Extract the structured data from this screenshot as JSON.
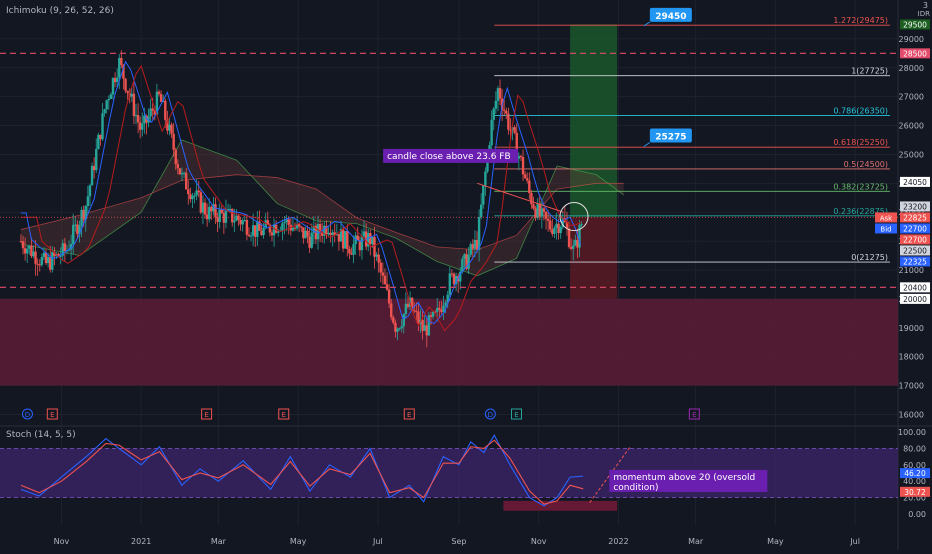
{
  "indicators": {
    "ichimoku_label": "Ichimoku (9, 26, 52, 26)",
    "stoch_label": "Stoch (14, 5, 5)"
  },
  "currency": "IDR",
  "top_axis_value": "3",
  "colors": {
    "background": "#131722",
    "grid": "#1e222d",
    "axis_text": "#b2b5be",
    "candle_up": "#26a69a",
    "candle_down": "#ef5350",
    "support_zone": "#5c1c36",
    "target_zone": "#1c5a2c",
    "stop_zone": "#5a1a24",
    "stoch_band": "#3b2466",
    "annotation_bg": "#6a1fb0",
    "callout_bg": "#2196f3",
    "dashed_line": "#e24b6a"
  },
  "annotations": {
    "candle_close": "candle close above 23.6 FB",
    "momentum": "momentum above 20 (oversold condition)"
  },
  "callouts": [
    "29450",
    "25275"
  ],
  "event_markers": [
    {
      "letter": "D",
      "color": "#2962ff",
      "date": "2020-10-06"
    },
    {
      "letter": "E",
      "color": "#ef5350",
      "date": "2020-10-25"
    },
    {
      "letter": "E",
      "color": "#ef5350",
      "date": "2021-02-20"
    },
    {
      "letter": "E",
      "color": "#ef5350",
      "date": "2021-04-20"
    },
    {
      "letter": "E",
      "color": "#ef5350",
      "date": "2021-07-25"
    },
    {
      "letter": "D",
      "color": "#2962ff",
      "date": "2021-09-25"
    },
    {
      "letter": "E",
      "color": "#26a69a",
      "date": "2021-10-15"
    },
    {
      "letter": "E",
      "color": "#9c27b0",
      "date": "2022-02-28"
    }
  ],
  "price_tags": [
    {
      "text": "29500",
      "price": 29500,
      "bg": "#1b5e20",
      "fg": "#ffffff"
    },
    {
      "text": "28500",
      "price": 28500,
      "bg": "#e24b6a",
      "fg": "#ffffff"
    },
    {
      "text": "24050",
      "price": 24050,
      "bg": "#ffffff",
      "fg": "#131722"
    },
    {
      "text": "23200",
      "price": 23200,
      "bg": "#d1d4dc",
      "fg": "#131722"
    },
    {
      "text": "22825",
      "price": 22825,
      "bg": "#ef5350",
      "fg": "#ffffff",
      "tag": "Ask"
    },
    {
      "text": "22700",
      "price": 22700,
      "bg": "#2962ff",
      "fg": "#ffffff",
      "tag": "Bid"
    },
    {
      "text": "22700",
      "price": 22700,
      "bg": "#ef5350",
      "fg": "#ffffff"
    },
    {
      "text": "22500",
      "price": 22500,
      "bg": "#d1d4dc",
      "fg": "#131722"
    },
    {
      "text": "22325",
      "price": 22325,
      "bg": "#2962ff",
      "fg": "#ffffff"
    },
    {
      "text": "20400",
      "price": 20400,
      "bg": "#ffffff",
      "fg": "#131722"
    },
    {
      "text": "20000",
      "price": 20000,
      "bg": "#ffffff",
      "fg": "#131722"
    }
  ],
  "stoch_tags": [
    {
      "text": "46.20",
      "value": 46.2,
      "bg": "#2962ff"
    },
    {
      "text": "30.72",
      "value": 30.72,
      "bg": "#ef5350"
    }
  ],
  "chart_data": [
    {
      "type": "candlestick",
      "title": "",
      "ylim": [
        15600,
        30000
      ],
      "y_ticks": [
        16000,
        17000,
        18000,
        19000,
        20000,
        21000,
        22000,
        23000,
        24000,
        25000,
        26000,
        27000,
        28000,
        29000
      ],
      "x_ticks": [
        {
          "label": "Nov",
          "date": "2020-11-01"
        },
        {
          "label": "2021",
          "date": "2021-01-01"
        },
        {
          "label": "Mar",
          "date": "2021-03-01"
        },
        {
          "label": "May",
          "date": "2021-05-01"
        },
        {
          "label": "Jul",
          "date": "2021-07-01"
        },
        {
          "label": "Sep",
          "date": "2021-09-01"
        },
        {
          "label": "Nov",
          "date": "2021-11-01"
        },
        {
          "label": "2022",
          "date": "2022-01-01"
        },
        {
          "label": "Mar",
          "date": "2022-03-01"
        },
        {
          "label": "May",
          "date": "2022-05-01"
        },
        {
          "label": "Jul",
          "date": "2022-07-01"
        }
      ],
      "price_path": [
        [
          "2020-10-01",
          22000
        ],
        [
          "2020-10-20",
          21200
        ],
        [
          "2020-11-05",
          21700
        ],
        [
          "2020-11-20",
          23300
        ],
        [
          "2020-12-05",
          26800
        ],
        [
          "2020-12-15",
          28200
        ],
        [
          "2021-01-01",
          25800
        ],
        [
          "2021-01-15",
          27000
        ],
        [
          "2021-02-01",
          24200
        ],
        [
          "2021-02-20",
          23000
        ],
        [
          "2021-03-15",
          22800
        ],
        [
          "2021-04-01",
          22300
        ],
        [
          "2021-04-20",
          22700
        ],
        [
          "2021-05-10",
          22100
        ],
        [
          "2021-05-25",
          22600
        ],
        [
          "2021-06-10",
          21800
        ],
        [
          "2021-06-25",
          22100
        ],
        [
          "2021-07-05",
          20600
        ],
        [
          "2021-07-15",
          19000
        ],
        [
          "2021-07-25",
          19800
        ],
        [
          "2021-08-05",
          18900
        ],
        [
          "2021-08-15",
          19400
        ],
        [
          "2021-08-25",
          20600
        ],
        [
          "2021-09-05",
          21200
        ],
        [
          "2021-09-15",
          22000
        ],
        [
          "2021-09-25",
          25800
        ],
        [
          "2021-10-01",
          27300
        ],
        [
          "2021-10-08",
          26200
        ],
        [
          "2021-10-18",
          24800
        ],
        [
          "2021-10-25",
          23600
        ],
        [
          "2021-11-01",
          22900
        ],
        [
          "2021-11-10",
          22500
        ],
        [
          "2021-11-20",
          22700
        ],
        [
          "2021-11-28",
          21600
        ],
        [
          "2021-12-05",
          22825
        ]
      ],
      "ichimoku": {
        "span_a": [
          [
            "2020-10-01",
            21900
          ],
          [
            "2020-11-15",
            21500
          ],
          [
            "2021-01-01",
            23000
          ],
          [
            "2021-02-01",
            25500
          ],
          [
            "2021-03-15",
            24800
          ],
          [
            "2021-04-15",
            23300
          ],
          [
            "2021-05-15",
            22700
          ],
          [
            "2021-06-15",
            22600
          ],
          [
            "2021-07-15",
            22100
          ],
          [
            "2021-08-15",
            21300
          ],
          [
            "2021-09-15",
            20800
          ],
          [
            "2021-10-15",
            21400
          ],
          [
            "2021-11-15",
            24600
          ],
          [
            "2021-12-15",
            24300
          ],
          [
            "2022-01-05",
            23600
          ]
        ],
        "span_b": [
          [
            "2020-10-01",
            22400
          ],
          [
            "2020-11-15",
            22900
          ],
          [
            "2021-01-01",
            23500
          ],
          [
            "2021-02-01",
            24100
          ],
          [
            "2021-03-15",
            24300
          ],
          [
            "2021-04-15",
            24200
          ],
          [
            "2021-05-15",
            23800
          ],
          [
            "2021-06-15",
            22800
          ],
          [
            "2021-07-15",
            22300
          ],
          [
            "2021-08-15",
            21800
          ],
          [
            "2021-09-15",
            21700
          ],
          [
            "2021-10-15",
            22200
          ],
          [
            "2021-11-15",
            23800
          ],
          [
            "2021-12-15",
            24000
          ],
          [
            "2022-01-05",
            24000
          ]
        ]
      },
      "fib_levels": [
        {
          "label": "1.272(29475)",
          "price": 29475,
          "color": "#ef5350"
        },
        {
          "label": "1(27725)",
          "price": 27725,
          "color": "#d1d4dc"
        },
        {
          "label": "0.786(26350)",
          "price": 26350,
          "color": "#26c6da"
        },
        {
          "label": "0.618(25250)",
          "price": 25250,
          "color": "#ef5350"
        },
        {
          "label": "0.5(24500)",
          "price": 24500,
          "color": "#e57373"
        },
        {
          "label": "0.382(23725)",
          "price": 23725,
          "color": "#66bb6a"
        },
        {
          "label": "0.236(22875)",
          "price": 22875,
          "color": "#26a69a"
        },
        {
          "label": "0(21275)",
          "price": 21275,
          "color": "#d1d4dc"
        }
      ],
      "horizontal_lines": [
        28500,
        20400
      ],
      "support_zone": [
        17000,
        20000
      ],
      "position": {
        "entry": 22825,
        "target": 29500,
        "stop": 20000,
        "start": "2021-11-25",
        "end": "2021-12-31"
      }
    },
    {
      "type": "line",
      "title": "Stoch (14, 5, 5)",
      "ylim": [
        0,
        100
      ],
      "y_ticks": [
        0,
        20,
        40,
        60,
        80,
        100
      ],
      "band": [
        20,
        80
      ],
      "series": [
        {
          "name": "%K",
          "color": "#2962ff",
          "points": [
            [
              "2020-10-01",
              30
            ],
            [
              "2020-10-15",
              22
            ],
            [
              "2020-11-01",
              45
            ],
            [
              "2020-11-20",
              70
            ],
            [
              "2020-12-05",
              92
            ],
            [
              "2020-12-15",
              80
            ],
            [
              "2021-01-01",
              60
            ],
            [
              "2021-01-15",
              82
            ],
            [
              "2021-02-01",
              35
            ],
            [
              "2021-02-15",
              55
            ],
            [
              "2021-03-01",
              40
            ],
            [
              "2021-03-20",
              65
            ],
            [
              "2021-04-10",
              30
            ],
            [
              "2021-04-25",
              70
            ],
            [
              "2021-05-10",
              28
            ],
            [
              "2021-05-25",
              60
            ],
            [
              "2021-06-10",
              45
            ],
            [
              "2021-06-25",
              80
            ],
            [
              "2021-07-10",
              20
            ],
            [
              "2021-07-25",
              35
            ],
            [
              "2021-08-05",
              15
            ],
            [
              "2021-08-20",
              70
            ],
            [
              "2021-09-01",
              60
            ],
            [
              "2021-09-10",
              88
            ],
            [
              "2021-09-20",
              75
            ],
            [
              "2021-09-28",
              96
            ],
            [
              "2021-10-10",
              60
            ],
            [
              "2021-10-25",
              20
            ],
            [
              "2021-11-05",
              10
            ],
            [
              "2021-11-15",
              20
            ],
            [
              "2021-11-25",
              45
            ],
            [
              "2021-12-05",
              46.2
            ]
          ]
        },
        {
          "name": "%D",
          "color": "#ef5350",
          "points": [
            [
              "2020-10-01",
              35
            ],
            [
              "2020-10-15",
              26
            ],
            [
              "2020-11-01",
              40
            ],
            [
              "2020-11-20",
              64
            ],
            [
              "2020-12-05",
              86
            ],
            [
              "2020-12-15",
              84
            ],
            [
              "2021-01-01",
              66
            ],
            [
              "2021-01-15",
              76
            ],
            [
              "2021-02-01",
              42
            ],
            [
              "2021-02-15",
              50
            ],
            [
              "2021-03-01",
              44
            ],
            [
              "2021-03-20",
              60
            ],
            [
              "2021-04-10",
              36
            ],
            [
              "2021-04-25",
              64
            ],
            [
              "2021-05-10",
              34
            ],
            [
              "2021-05-25",
              55
            ],
            [
              "2021-06-10",
              48
            ],
            [
              "2021-06-25",
              74
            ],
            [
              "2021-07-10",
              26
            ],
            [
              "2021-07-25",
              32
            ],
            [
              "2021-08-05",
              20
            ],
            [
              "2021-08-20",
              62
            ],
            [
              "2021-09-01",
              62
            ],
            [
              "2021-09-10",
              82
            ],
            [
              "2021-09-20",
              80
            ],
            [
              "2021-09-28",
              90
            ],
            [
              "2021-10-10",
              68
            ],
            [
              "2021-10-25",
              28
            ],
            [
              "2021-11-05",
              12
            ],
            [
              "2021-11-15",
              16
            ],
            [
              "2021-11-25",
              35
            ],
            [
              "2021-12-05",
              30.72
            ]
          ]
        }
      ]
    }
  ]
}
